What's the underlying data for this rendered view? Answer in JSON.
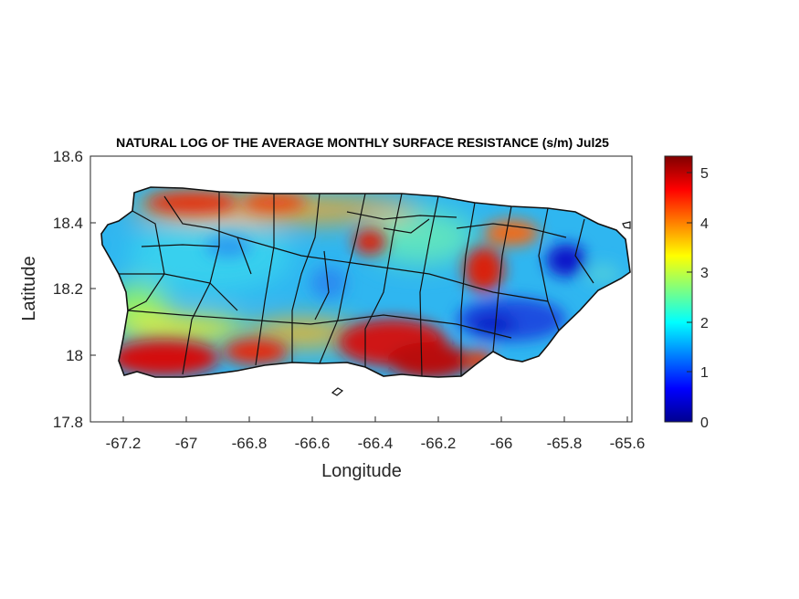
{
  "title": "NATURAL LOG OF THE AVERAGE MONTHLY SURFACE RESISTANCE (s/m) Jul25",
  "axes": {
    "xlabel": "Longitude",
    "ylabel": "Latitude",
    "xlim": [
      -67.3,
      -65.58
    ],
    "ylim": [
      17.8,
      18.6
    ],
    "xticks": [
      "-67.2",
      "-67",
      "-66.8",
      "-66.6",
      "-66.4",
      "-66.2",
      "-66",
      "-65.8",
      "-65.6"
    ],
    "yticks": [
      "18.6",
      "18.4",
      "18.2",
      "18",
      "17.8"
    ]
  },
  "colorbar": {
    "colormap": "jet",
    "range": [
      0,
      5.35
    ],
    "ticks": [
      "5",
      "4",
      "3",
      "2",
      "1",
      "0"
    ]
  },
  "chart_data": {
    "type": "heatmap",
    "title": "NATURAL LOG OF THE AVERAGE MONTHLY SURFACE RESISTANCE (s/m) Jul25",
    "xlabel": "Longitude",
    "ylabel": "Latitude",
    "xlim": [
      -67.3,
      -65.58
    ],
    "ylim": [
      17.8,
      18.6
    ],
    "color_range": [
      0,
      5.35
    ],
    "colormap": "jet",
    "region": "Puerto Rico (municipality boundaries overlaid)",
    "hotspots": [
      {
        "lon": -67.12,
        "lat": 17.97,
        "value": 5.2
      },
      {
        "lon": -66.85,
        "lat": 18.0,
        "value": 4.8
      },
      {
        "lon": -66.35,
        "lat": 18.05,
        "value": 5.1
      },
      {
        "lon": -66.28,
        "lat": 17.99,
        "value": 5.2
      },
      {
        "lon": -66.42,
        "lat": 18.35,
        "value": 4.6
      },
      {
        "lon": -66.95,
        "lat": 18.47,
        "value": 4.7
      },
      {
        "lon": -66.7,
        "lat": 18.46,
        "value": 4.5
      },
      {
        "lon": -66.05,
        "lat": 18.25,
        "value": 4.6
      },
      {
        "lon": -65.95,
        "lat": 18.33,
        "value": 4.2
      },
      {
        "lon": -65.8,
        "lat": 18.28,
        "value": 0.4
      },
      {
        "lon": -66.04,
        "lat": 18.1,
        "value": 0.9
      },
      {
        "lon": -66.6,
        "lat": 18.2,
        "value": 1.6
      }
    ],
    "grid": false
  }
}
